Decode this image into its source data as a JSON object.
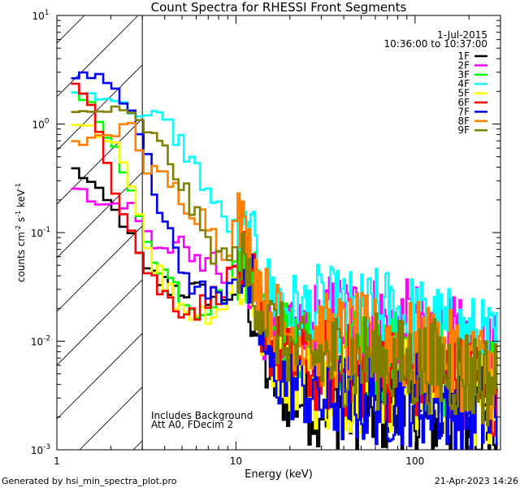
{
  "chart_data": {
    "type": "line",
    "title": "Count Spectra for RHESSI Front Segments",
    "xlabel": "Energy (keV)",
    "ylabel_parts": {
      "pre": "counts cm",
      "sup1": "-2",
      "mid": " s",
      "sup2": "-1",
      "post": " keV",
      "sup3": "-1"
    },
    "xscale": "log",
    "yscale": "log",
    "xlim": [
      1,
      300
    ],
    "ylim": [
      0.001,
      10
    ],
    "x_ticks": [
      {
        "value": 1,
        "label": "1"
      },
      {
        "value": 10,
        "label": "10"
      },
      {
        "value": 100,
        "label": "100"
      }
    ],
    "y_ticks": [
      {
        "value": 0.001,
        "base": "10",
        "exp": "-3"
      },
      {
        "value": 0.01,
        "base": "10",
        "exp": "-2"
      },
      {
        "value": 0.1,
        "base": "10",
        "exp": "-1"
      },
      {
        "value": 1,
        "base": "10",
        "exp": "0"
      },
      {
        "value": 10,
        "base": "10",
        "exp": "1"
      }
    ],
    "shaded_region": {
      "x_start": 1,
      "x_end": 3,
      "pattern": "hatch"
    },
    "header_lines": [
      "1-Jul-2015",
      "10:36:00 to 10:37:00"
    ],
    "annotations": [
      "Includes Background",
      "Att A0, FDecim 2"
    ],
    "series": [
      {
        "name": "1F",
        "color": "#000000",
        "anchors": [
          [
            1.2,
            0.38
          ],
          [
            1.5,
            0.28
          ],
          [
            2,
            0.16
          ],
          [
            2.5,
            0.09
          ],
          [
            3,
            0.045
          ],
          [
            4,
            0.032
          ],
          [
            5,
            0.03
          ],
          [
            6,
            0.028
          ],
          [
            8,
            0.025
          ],
          [
            10,
            0.03
          ],
          [
            11,
            0.05
          ],
          [
            12,
            0.02
          ],
          [
            15,
            0.005
          ],
          [
            20,
            0.003
          ],
          [
            30,
            0.003
          ],
          [
            50,
            0.0025
          ],
          [
            80,
            0.0025
          ],
          [
            120,
            0.002
          ],
          [
            200,
            0.0018
          ],
          [
            290,
            0.0016
          ]
        ]
      },
      {
        "name": "2F",
        "color": "#ff00ff",
        "anchors": [
          [
            1.2,
            0.26
          ],
          [
            1.5,
            0.2
          ],
          [
            2,
            0.17
          ],
          [
            2.5,
            0.18
          ],
          [
            3,
            0.1
          ],
          [
            4,
            0.06
          ],
          [
            5,
            0.09
          ],
          [
            6,
            0.05
          ],
          [
            7,
            0.08
          ],
          [
            8,
            0.035
          ],
          [
            10,
            0.05
          ],
          [
            12,
            0.025
          ],
          [
            15,
            0.012
          ],
          [
            20,
            0.01
          ],
          [
            30,
            0.015
          ],
          [
            50,
            0.016
          ],
          [
            80,
            0.014
          ],
          [
            120,
            0.012
          ],
          [
            200,
            0.008
          ],
          [
            290,
            0.006
          ]
        ]
      },
      {
        "name": "3F",
        "color": "#00ff00",
        "anchors": [
          [
            1.2,
            2.0
          ],
          [
            1.5,
            1.5
          ],
          [
            2,
            0.6
          ],
          [
            2.5,
            0.22
          ],
          [
            3,
            0.09
          ],
          [
            4,
            0.04
          ],
          [
            5,
            0.025
          ],
          [
            6,
            0.02
          ],
          [
            8,
            0.025
          ],
          [
            10,
            0.05
          ],
          [
            12,
            0.05
          ],
          [
            15,
            0.02
          ],
          [
            20,
            0.01
          ],
          [
            30,
            0.008
          ],
          [
            50,
            0.007
          ],
          [
            80,
            0.007
          ],
          [
            120,
            0.006
          ],
          [
            200,
            0.005
          ],
          [
            290,
            0.004
          ]
        ]
      },
      {
        "name": "4F",
        "color": "#00ffff",
        "anchors": [
          [
            1.2,
            1.9
          ],
          [
            1.5,
            1.9
          ],
          [
            2,
            1.7
          ],
          [
            2.5,
            1.3
          ],
          [
            3,
            1.2
          ],
          [
            4,
            1.0
          ],
          [
            5,
            0.6
          ],
          [
            6,
            0.35
          ],
          [
            7,
            0.22
          ],
          [
            8,
            0.14
          ],
          [
            10,
            0.1
          ],
          [
            12,
            0.08
          ],
          [
            15,
            0.03
          ],
          [
            20,
            0.02
          ],
          [
            30,
            0.018
          ],
          [
            50,
            0.016
          ],
          [
            70,
            0.018
          ],
          [
            90,
            0.016
          ],
          [
            120,
            0.013
          ],
          [
            200,
            0.01
          ],
          [
            290,
            0.008
          ]
        ]
      },
      {
        "name": "5F",
        "color": "#ffff00",
        "anchors": [
          [
            1.2,
            0.95
          ],
          [
            1.5,
            0.9
          ],
          [
            2,
            0.7
          ],
          [
            2.5,
            0.28
          ],
          [
            3,
            0.08
          ],
          [
            4,
            0.03
          ],
          [
            5,
            0.02
          ],
          [
            6,
            0.018
          ],
          [
            8,
            0.02
          ],
          [
            10,
            0.04
          ],
          [
            12,
            0.03
          ],
          [
            15,
            0.008
          ],
          [
            20,
            0.005
          ],
          [
            30,
            0.004
          ],
          [
            50,
            0.004
          ],
          [
            80,
            0.004
          ],
          [
            120,
            0.004
          ],
          [
            200,
            0.003
          ],
          [
            290,
            0.003
          ]
        ]
      },
      {
        "name": "6F",
        "color": "#ff0000",
        "anchors": [
          [
            1.2,
            2.3
          ],
          [
            1.5,
            1.6
          ],
          [
            2,
            0.25
          ],
          [
            2.5,
            0.1
          ],
          [
            3,
            0.045
          ],
          [
            4,
            0.025
          ],
          [
            5,
            0.02
          ],
          [
            6,
            0.02
          ],
          [
            8,
            0.03
          ],
          [
            10,
            0.05
          ],
          [
            12,
            0.04
          ],
          [
            15,
            0.01
          ],
          [
            20,
            0.006
          ],
          [
            30,
            0.006
          ],
          [
            50,
            0.005
          ],
          [
            80,
            0.005
          ],
          [
            120,
            0.005
          ],
          [
            200,
            0.004
          ],
          [
            290,
            0.003
          ]
        ]
      },
      {
        "name": "7F",
        "color": "#0000ff",
        "anchors": [
          [
            1.2,
            2.7
          ],
          [
            1.5,
            2.9
          ],
          [
            2,
            2.2
          ],
          [
            2.5,
            1.3
          ],
          [
            3,
            0.6
          ],
          [
            4,
            0.1
          ],
          [
            5,
            0.04
          ],
          [
            6,
            0.03
          ],
          [
            8,
            0.025
          ],
          [
            10,
            0.05
          ],
          [
            12,
            0.03
          ],
          [
            15,
            0.006
          ],
          [
            20,
            0.004
          ],
          [
            30,
            0.003
          ],
          [
            50,
            0.003
          ],
          [
            80,
            0.003
          ],
          [
            120,
            0.003
          ],
          [
            200,
            0.0025
          ],
          [
            290,
            0.002
          ]
        ]
      },
      {
        "name": "8F",
        "color": "#ff8000",
        "anchors": [
          [
            1.2,
            0.7
          ],
          [
            1.5,
            0.7
          ],
          [
            2,
            0.8
          ],
          [
            2.5,
            1.1
          ],
          [
            3,
            0.35
          ],
          [
            4,
            0.3
          ],
          [
            5,
            0.2
          ],
          [
            6,
            0.15
          ],
          [
            7,
            0.12
          ],
          [
            8,
            0.07
          ],
          [
            9,
            0.08
          ],
          [
            10,
            0.15
          ],
          [
            12,
            0.06
          ],
          [
            15,
            0.02
          ],
          [
            20,
            0.012
          ],
          [
            30,
            0.01
          ],
          [
            50,
            0.01
          ],
          [
            80,
            0.009
          ],
          [
            120,
            0.008
          ],
          [
            200,
            0.006
          ],
          [
            290,
            0.005
          ]
        ]
      },
      {
        "name": "9F",
        "color": "#808000",
        "anchors": [
          [
            1.2,
            1.25
          ],
          [
            1.5,
            1.3
          ],
          [
            2,
            1.35
          ],
          [
            2.5,
            1.2
          ],
          [
            3,
            0.9
          ],
          [
            4,
            0.5
          ],
          [
            5,
            0.25
          ],
          [
            6,
            0.12
          ],
          [
            7,
            0.07
          ],
          [
            8,
            0.06
          ],
          [
            10,
            0.06
          ],
          [
            12,
            0.035
          ],
          [
            15,
            0.015
          ],
          [
            20,
            0.008
          ],
          [
            30,
            0.007
          ],
          [
            50,
            0.007
          ],
          [
            80,
            0.006
          ],
          [
            120,
            0.006
          ],
          [
            200,
            0.005
          ],
          [
            290,
            0.004
          ]
        ]
      }
    ]
  },
  "footer": {
    "left": "Generated by hsi_min_spectra_plot.pro",
    "right": "21-Apr-2023 14:26"
  }
}
